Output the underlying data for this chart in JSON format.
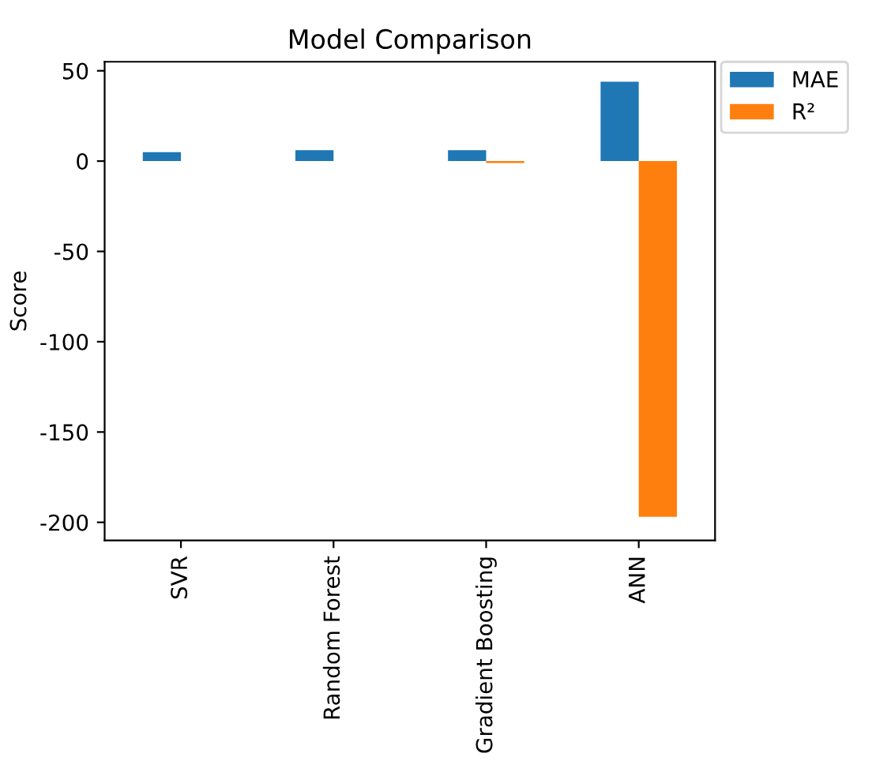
{
  "chart_data": {
    "type": "bar",
    "title": "Model Comparison",
    "ylabel": "Score",
    "categories": [
      "SVR",
      "Random Forest",
      "Gradient Boosting",
      "ANN"
    ],
    "series": [
      {
        "name": "MAE",
        "color": "#1f77b4",
        "values": [
          5,
          6,
          6,
          44
        ]
      },
      {
        "name": "R²",
        "color": "#ff7f0e",
        "values": [
          0,
          0,
          -1,
          -197
        ]
      }
    ],
    "ylim": [
      -210,
      55
    ],
    "yticks": [
      -200,
      -150,
      -100,
      -50,
      0,
      50
    ],
    "grid": false,
    "legend": "top right"
  }
}
